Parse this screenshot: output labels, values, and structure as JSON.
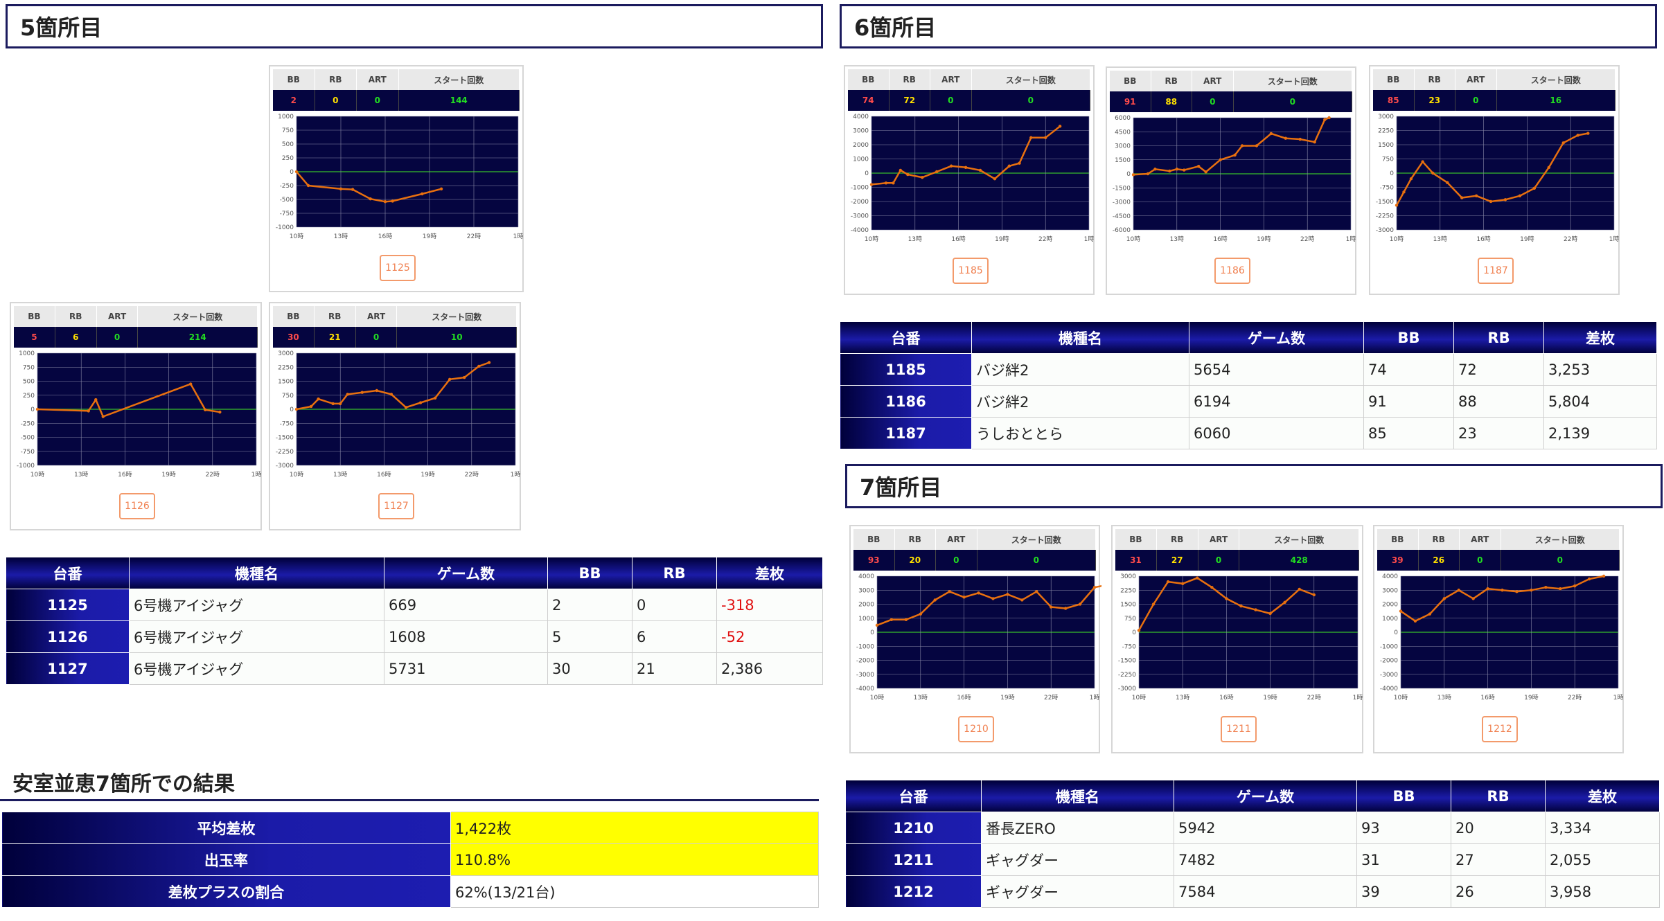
{
  "sections": [
    {
      "title": "5箇所目"
    },
    {
      "title": "6箇所目"
    },
    {
      "title": "7箇所目"
    }
  ],
  "card_header": {
    "bb": "BB",
    "rb": "RB",
    "art": "ART",
    "start": "スタート回数"
  },
  "time_labels": [
    "10時",
    "13時",
    "16時",
    "19時",
    "22時",
    "1時"
  ],
  "colors": {
    "line": "#e8700f",
    "plot_bg": "#050540",
    "zero_line": "#2ea02e",
    "grid": "#8a8aa8",
    "header_bg": "#e9e9e9"
  },
  "cards": [
    {
      "machine": "1125",
      "bb": "2",
      "rb": "0",
      "art": "0",
      "start": "144",
      "yticks": [
        "1000",
        "750",
        "500",
        "250",
        "0",
        "-250",
        "-500",
        "-750",
        "-1000"
      ],
      "ymin": -1000,
      "ymax": 1000,
      "points": [
        [
          0,
          0
        ],
        [
          0.8,
          -250
        ],
        [
          3,
          -310
        ],
        [
          3.8,
          -320
        ],
        [
          5,
          -490
        ],
        [
          6,
          -540
        ],
        [
          6.5,
          -530
        ],
        [
          8.5,
          -400
        ],
        [
          9.8,
          -310
        ]
      ]
    },
    {
      "machine": "1126",
      "bb": "5",
      "rb": "6",
      "art": "0",
      "start": "214",
      "yticks": [
        "1000",
        "750",
        "500",
        "250",
        "0",
        "-250",
        "-500",
        "-750",
        "-1000"
      ],
      "ymin": -1000,
      "ymax": 1000,
      "points": [
        [
          0,
          0
        ],
        [
          3.5,
          -30
        ],
        [
          4,
          170
        ],
        [
          4.5,
          -130
        ],
        [
          10.5,
          450
        ],
        [
          11.5,
          -10
        ],
        [
          12.5,
          -50
        ]
      ]
    },
    {
      "machine": "1127",
      "bb": "30",
      "rb": "21",
      "art": "0",
      "start": "10",
      "yticks": [
        "3000",
        "2250",
        "1500",
        "750",
        "0",
        "-750",
        "-1500",
        "-2250",
        "-3000"
      ],
      "ymin": -3000,
      "ymax": 3000,
      "points": [
        [
          0,
          0
        ],
        [
          1,
          150
        ],
        [
          1.5,
          550
        ],
        [
          2.5,
          300
        ],
        [
          3,
          300
        ],
        [
          3.5,
          800
        ],
        [
          4.5,
          900
        ],
        [
          5.5,
          1000
        ],
        [
          6.5,
          800
        ],
        [
          7.5,
          100
        ],
        [
          8.5,
          350
        ],
        [
          9.5,
          600
        ],
        [
          10.5,
          1600
        ],
        [
          11.5,
          1700
        ],
        [
          12.5,
          2300
        ],
        [
          13.2,
          2500
        ]
      ]
    },
    {
      "machine": "1185",
      "bb": "74",
      "rb": "72",
      "art": "0",
      "start": "0",
      "yticks": [
        "4000",
        "3000",
        "2000",
        "1000",
        "0",
        "-1000",
        "-2000",
        "-3000",
        "-4000"
      ],
      "ymin": -4000,
      "ymax": 4000,
      "points": [
        [
          0,
          -800
        ],
        [
          1,
          -700
        ],
        [
          1.5,
          -700
        ],
        [
          2,
          200
        ],
        [
          2.5,
          -100
        ],
        [
          3.5,
          -300
        ],
        [
          4.5,
          100
        ],
        [
          5.5,
          500
        ],
        [
          6.5,
          400
        ],
        [
          7.5,
          200
        ],
        [
          8.5,
          -400
        ],
        [
          9.5,
          500
        ],
        [
          10.2,
          700
        ],
        [
          11,
          2500
        ],
        [
          12,
          2500
        ],
        [
          13,
          3300
        ]
      ]
    },
    {
      "machine": "1186",
      "bb": "91",
      "rb": "88",
      "art": "0",
      "start": "0",
      "yticks": [
        "6000",
        "4500",
        "3000",
        "1500",
        "0",
        "-1500",
        "-3000",
        "-4500",
        "-6000"
      ],
      "ymin": -6000,
      "ymax": 6000,
      "points": [
        [
          0,
          -100
        ],
        [
          1,
          0
        ],
        [
          1.5,
          500
        ],
        [
          2.5,
          300
        ],
        [
          3,
          500
        ],
        [
          3.5,
          400
        ],
        [
          4.5,
          800
        ],
        [
          5,
          200
        ],
        [
          6,
          1500
        ],
        [
          7,
          2000
        ],
        [
          7.5,
          3000
        ],
        [
          8.5,
          3000
        ],
        [
          9.5,
          4300
        ],
        [
          10.5,
          3800
        ],
        [
          11.5,
          3700
        ],
        [
          12.5,
          3400
        ],
        [
          13.2,
          5800
        ],
        [
          13.5,
          6000
        ]
      ]
    },
    {
      "machine": "1187",
      "bb": "85",
      "rb": "23",
      "art": "0",
      "start": "16",
      "yticks": [
        "3000",
        "2250",
        "1500",
        "750",
        "0",
        "-750",
        "-1500",
        "-2250",
        "-3000"
      ],
      "ymin": -3000,
      "ymax": 3000,
      "points": [
        [
          0,
          -1700
        ],
        [
          0.5,
          -1000
        ],
        [
          1,
          -300
        ],
        [
          1.8,
          600
        ],
        [
          2.5,
          0
        ],
        [
          3.5,
          -500
        ],
        [
          4.5,
          -1300
        ],
        [
          5.5,
          -1200
        ],
        [
          6.5,
          -1500
        ],
        [
          7.5,
          -1400
        ],
        [
          8.5,
          -1200
        ],
        [
          9.5,
          -800
        ],
        [
          10.5,
          300
        ],
        [
          11.5,
          1600
        ],
        [
          12.5,
          2000
        ],
        [
          13.2,
          2100
        ]
      ]
    },
    {
      "machine": "1210",
      "bb": "93",
      "rb": "20",
      "art": "0",
      "start": "0",
      "yticks": [
        "4000",
        "3000",
        "2000",
        "1000",
        "0",
        "-1000",
        "-2000",
        "-3000",
        "-4000"
      ],
      "ymin": -4000,
      "ymax": 4000,
      "points": [
        [
          0,
          500
        ],
        [
          1,
          900
        ],
        [
          2,
          900
        ],
        [
          3,
          1300
        ],
        [
          4,
          2300
        ],
        [
          5,
          2900
        ],
        [
          6,
          2500
        ],
        [
          7,
          2800
        ],
        [
          8,
          2400
        ],
        [
          9,
          2700
        ],
        [
          10,
          2300
        ],
        [
          11,
          2900
        ],
        [
          12,
          1800
        ],
        [
          13,
          1700
        ],
        [
          14,
          2000
        ],
        [
          15,
          3200
        ],
        [
          16,
          3400
        ]
      ]
    },
    {
      "machine": "1211",
      "bb": "31",
      "rb": "27",
      "art": "0",
      "start": "428",
      "yticks": [
        "3000",
        "2250",
        "1500",
        "750",
        "0",
        "-750",
        "-1500",
        "-2250",
        "-3000"
      ],
      "ymin": -3000,
      "ymax": 3000,
      "points": [
        [
          0,
          100
        ],
        [
          1,
          1500
        ],
        [
          2,
          2700
        ],
        [
          3,
          2600
        ],
        [
          4,
          2900
        ],
        [
          5,
          2400
        ],
        [
          6,
          1800
        ],
        [
          7,
          1400
        ],
        [
          8,
          1200
        ],
        [
          9,
          1000
        ],
        [
          10,
          1600
        ],
        [
          11,
          2300
        ],
        [
          12,
          2000
        ]
      ]
    },
    {
      "machine": "1212",
      "bb": "39",
      "rb": "26",
      "art": "0",
      "start": "0",
      "yticks": [
        "4000",
        "3000",
        "2000",
        "1000",
        "0",
        "-1000",
        "-2000",
        "-3000",
        "-4000"
      ],
      "ymin": -4000,
      "ymax": 4000,
      "points": [
        [
          0,
          1500
        ],
        [
          1,
          800
        ],
        [
          2,
          1300
        ],
        [
          3,
          2400
        ],
        [
          4,
          3000
        ],
        [
          5,
          2400
        ],
        [
          6,
          3100
        ],
        [
          7,
          3000
        ],
        [
          8,
          2900
        ],
        [
          9,
          3000
        ],
        [
          10,
          3200
        ],
        [
          11,
          3100
        ],
        [
          12,
          3300
        ],
        [
          13,
          3800
        ],
        [
          14,
          4000
        ]
      ]
    }
  ],
  "table_headers": [
    "台番",
    "機種名",
    "ゲーム数",
    "BB",
    "RB",
    "差枚"
  ],
  "tables": [
    {
      "rows": [
        {
          "no": "1125",
          "name": "6号機アイジャグ",
          "games": "669",
          "bb": "2",
          "rb": "0",
          "diff": "-318",
          "neg": true
        },
        {
          "no": "1126",
          "name": "6号機アイジャグ",
          "games": "1608",
          "bb": "5",
          "rb": "6",
          "diff": "-52",
          "neg": true
        },
        {
          "no": "1127",
          "name": "6号機アイジャグ",
          "games": "5731",
          "bb": "30",
          "rb": "21",
          "diff": "2,386",
          "neg": false
        }
      ]
    },
    {
      "rows": [
        {
          "no": "1185",
          "name": "バジ絆2",
          "games": "5654",
          "bb": "74",
          "rb": "72",
          "diff": "3,253",
          "neg": false
        },
        {
          "no": "1186",
          "name": "バジ絆2",
          "games": "6194",
          "bb": "91",
          "rb": "88",
          "diff": "5,804",
          "neg": false
        },
        {
          "no": "1187",
          "name": "うしおととら",
          "games": "6060",
          "bb": "85",
          "rb": "23",
          "diff": "2,139",
          "neg": false
        }
      ]
    },
    {
      "rows": [
        {
          "no": "1210",
          "name": "番長ZERO",
          "games": "5942",
          "bb": "93",
          "rb": "20",
          "diff": "3,334",
          "neg": false
        },
        {
          "no": "1211",
          "name": "ギャグダー",
          "games": "7482",
          "bb": "31",
          "rb": "27",
          "diff": "2,055",
          "neg": false
        },
        {
          "no": "1212",
          "name": "ギャグダー",
          "games": "7584",
          "bb": "39",
          "rb": "26",
          "diff": "3,958",
          "neg": false
        }
      ]
    }
  ],
  "summary": {
    "title": "安室並恵7箇所での結果",
    "rows": [
      {
        "label": "平均差枚",
        "value": "1,422枚",
        "highlight": true
      },
      {
        "label": "出玉率",
        "value": "110.8%",
        "highlight": true
      },
      {
        "label": "差枚プラスの割合",
        "value": "62%(13/21台)",
        "highlight": false
      }
    ]
  }
}
